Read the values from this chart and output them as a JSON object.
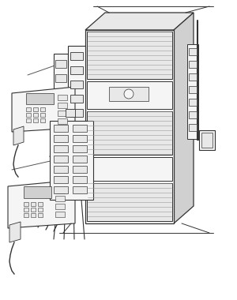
{
  "background_color": "#ffffff",
  "line_color": "#333333",
  "line_color_light": "#555555",
  "line_color_dark": "#111111",
  "fill_light": "#e8e8e8",
  "fill_mid": "#d0d0d0",
  "fill_dark": "#b0b0b0",
  "fill_white": "#f5f5f5",
  "figsize": [
    3.0,
    3.8
  ],
  "dpi": 100
}
